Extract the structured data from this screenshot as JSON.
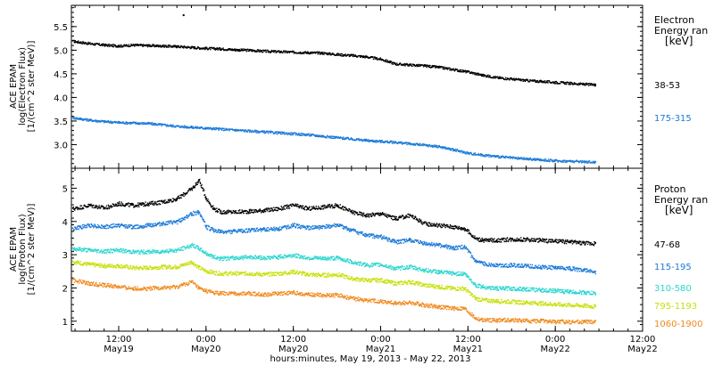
{
  "xlabel": "hours:minutes, May 19, 2013 - May 22, 2013",
  "x_ticks": [
    {
      "t": 12,
      "time": "12:00",
      "date": "May19"
    },
    {
      "t": 24,
      "time": "0:00",
      "date": "May20"
    },
    {
      "t": 36,
      "time": "12:00",
      "date": "May20"
    },
    {
      "t": 48,
      "time": "0:00",
      "date": "May21"
    },
    {
      "t": 60,
      "time": "12:00",
      "date": "May21"
    },
    {
      "t": 72,
      "time": "0:00",
      "date": "May22"
    },
    {
      "t": 84,
      "time": "12:00",
      "date": "May22"
    }
  ],
  "chart_data": [
    {
      "type": "scatter",
      "panel": "electron",
      "ylabel": [
        "ACE EPAM",
        "log(Electron Flux)",
        "[1/(cm^2 ster MeV)]"
      ],
      "legend_title": [
        "Electron",
        "Energy ran",
        "[keV]"
      ],
      "xlim": [
        5.5,
        84
      ],
      "ylim": [
        2.5,
        5.95
      ],
      "y_ticks": [
        "3.0",
        "3.5",
        "4.0",
        "4.5",
        "5.0",
        "5.5"
      ],
      "y_tick_values": [
        3.0,
        3.5,
        4.0,
        4.5,
        5.0,
        5.5
      ],
      "series": [
        {
          "name": "38-53",
          "color": "#000000",
          "x": [
            5.7,
            8,
            10,
            12,
            14,
            16,
            18,
            20,
            22,
            24,
            26,
            28,
            30,
            32,
            34,
            36,
            38,
            40,
            42,
            44,
            46,
            48,
            50,
            52,
            54,
            56,
            58,
            60,
            62,
            64,
            66,
            68,
            70,
            72,
            74,
            76,
            77.5
          ],
          "y": [
            5.2,
            5.15,
            5.12,
            5.1,
            5.12,
            5.11,
            5.1,
            5.09,
            5.07,
            5.05,
            5.04,
            5.02,
            5.01,
            4.99,
            4.98,
            4.97,
            4.96,
            4.95,
            4.92,
            4.9,
            4.87,
            4.82,
            4.72,
            4.7,
            4.68,
            4.65,
            4.6,
            4.55,
            4.48,
            4.43,
            4.4,
            4.37,
            4.35,
            4.33,
            4.31,
            4.29,
            4.28
          ]
        },
        {
          "name": "175-315",
          "color": "#1b7ad8",
          "x": [
            5.7,
            8,
            10,
            12,
            14,
            16,
            18,
            20,
            22,
            24,
            26,
            28,
            30,
            32,
            34,
            36,
            38,
            40,
            42,
            44,
            46,
            48,
            50,
            52,
            54,
            56,
            58,
            60,
            62,
            64,
            66,
            68,
            70,
            72,
            74,
            76,
            77.5
          ],
          "y": [
            3.58,
            3.53,
            3.5,
            3.48,
            3.47,
            3.46,
            3.43,
            3.4,
            3.38,
            3.36,
            3.34,
            3.32,
            3.3,
            3.28,
            3.26,
            3.24,
            3.22,
            3.19,
            3.16,
            3.13,
            3.1,
            3.08,
            3.06,
            3.03,
            3.0,
            2.97,
            2.9,
            2.83,
            2.79,
            2.76,
            2.73,
            2.71,
            2.69,
            2.67,
            2.66,
            2.65,
            2.64
          ]
        }
      ],
      "annotations": [
        {
          "x": 20.8,
          "y": 5.76,
          "note": "isolated point"
        }
      ]
    },
    {
      "type": "scatter",
      "panel": "proton",
      "ylabel": [
        "ACE EPAM",
        "log(Proton Flux)",
        "[1/(cm^2 ster MeV)]"
      ],
      "legend_title": [
        "Proton",
        "Energy ran",
        "[keV]"
      ],
      "xlim": [
        5.5,
        84
      ],
      "ylim": [
        0.7,
        5.6
      ],
      "y_ticks": [
        "1",
        "2",
        "3",
        "4",
        "5"
      ],
      "y_tick_values": [
        1,
        2,
        3,
        4,
        5
      ],
      "series": [
        {
          "name": "47-68",
          "color": "#000000",
          "x": [
            5.7,
            8,
            10,
            12,
            14,
            16,
            18,
            20,
            22,
            23,
            24,
            25,
            26,
            28,
            30,
            32,
            34,
            36,
            38,
            40,
            42,
            44,
            46,
            48,
            50,
            52,
            54,
            56,
            58,
            59.5,
            61,
            62,
            64,
            66,
            68,
            70,
            72,
            74,
            76,
            77.5
          ],
          "y": [
            4.4,
            4.5,
            4.42,
            4.55,
            4.5,
            4.55,
            4.6,
            4.7,
            5.0,
            5.25,
            4.7,
            4.4,
            4.3,
            4.3,
            4.32,
            4.35,
            4.4,
            4.5,
            4.4,
            4.45,
            4.5,
            4.3,
            4.2,
            4.25,
            4.1,
            4.2,
            3.95,
            3.9,
            3.85,
            3.8,
            3.5,
            3.45,
            3.45,
            3.48,
            3.47,
            3.45,
            3.42,
            3.4,
            3.37,
            3.35
          ]
        },
        {
          "name": "115-195",
          "color": "#1b7ad8",
          "x": [
            5.7,
            8,
            10,
            12,
            14,
            16,
            18,
            20,
            22,
            23,
            24,
            25,
            26,
            28,
            30,
            32,
            34,
            36,
            38,
            40,
            42,
            44,
            46,
            48,
            50,
            52,
            54,
            56,
            58,
            59.5,
            61,
            62,
            64,
            66,
            68,
            70,
            72,
            74,
            76,
            77.5
          ],
          "y": [
            3.8,
            3.9,
            3.85,
            3.9,
            3.85,
            3.9,
            3.95,
            4.0,
            4.25,
            4.3,
            3.85,
            3.75,
            3.7,
            3.72,
            3.75,
            3.78,
            3.8,
            3.9,
            3.82,
            3.85,
            3.9,
            3.75,
            3.6,
            3.55,
            3.4,
            3.45,
            3.35,
            3.3,
            3.22,
            3.25,
            2.8,
            2.75,
            2.7,
            2.7,
            2.68,
            2.65,
            2.62,
            2.6,
            2.55,
            2.5
          ]
        },
        {
          "name": "310-580",
          "color": "#2ad6cf",
          "x": [
            5.7,
            8,
            10,
            12,
            14,
            16,
            18,
            20,
            22,
            23,
            24,
            25,
            26,
            28,
            30,
            32,
            34,
            36,
            38,
            40,
            42,
            44,
            46,
            48,
            50,
            52,
            54,
            56,
            58,
            59.5,
            61,
            62,
            64,
            66,
            68,
            70,
            72,
            74,
            76,
            77.5
          ],
          "y": [
            3.2,
            3.15,
            3.12,
            3.15,
            3.1,
            3.1,
            3.12,
            3.15,
            3.3,
            3.2,
            3.05,
            2.95,
            2.9,
            2.92,
            2.95,
            2.92,
            2.95,
            3.0,
            2.92,
            2.9,
            2.92,
            2.8,
            2.7,
            2.72,
            2.6,
            2.65,
            2.55,
            2.5,
            2.45,
            2.45,
            2.1,
            2.05,
            2.0,
            2.0,
            1.98,
            1.95,
            1.93,
            1.9,
            1.88,
            1.85
          ]
        },
        {
          "name": "795-1193",
          "color": "#c6e008",
          "x": [
            5.7,
            8,
            10,
            12,
            14,
            16,
            18,
            20,
            22,
            23,
            24,
            25,
            26,
            28,
            30,
            32,
            34,
            36,
            38,
            40,
            42,
            44,
            46,
            48,
            50,
            52,
            54,
            56,
            58,
            59.5,
            61,
            62,
            64,
            66,
            68,
            70,
            72,
            74,
            76,
            77.5
          ],
          "y": [
            2.8,
            2.72,
            2.68,
            2.68,
            2.62,
            2.62,
            2.65,
            2.65,
            2.8,
            2.62,
            2.52,
            2.48,
            2.45,
            2.45,
            2.45,
            2.42,
            2.45,
            2.5,
            2.42,
            2.4,
            2.42,
            2.3,
            2.25,
            2.25,
            2.15,
            2.2,
            2.1,
            2.05,
            2.0,
            2.0,
            1.7,
            1.65,
            1.62,
            1.6,
            1.58,
            1.55,
            1.52,
            1.5,
            1.48,
            1.45
          ]
        },
        {
          "name": "1060-1900",
          "color": "#f08a1e",
          "x": [
            5.7,
            8,
            10,
            12,
            14,
            16,
            18,
            20,
            22,
            23,
            24,
            25,
            26,
            28,
            30,
            32,
            34,
            36,
            38,
            40,
            42,
            44,
            46,
            48,
            50,
            52,
            54,
            56,
            58,
            59.5,
            61,
            62,
            64,
            66,
            68,
            70,
            72,
            74,
            76,
            77.5
          ],
          "y": [
            2.25,
            2.15,
            2.1,
            2.05,
            2.0,
            2.0,
            2.02,
            2.05,
            2.2,
            2.0,
            1.92,
            1.88,
            1.85,
            1.85,
            1.85,
            1.82,
            1.85,
            1.88,
            1.82,
            1.8,
            1.8,
            1.7,
            1.65,
            1.62,
            1.55,
            1.58,
            1.5,
            1.45,
            1.4,
            1.4,
            1.1,
            1.05,
            1.05,
            1.05,
            1.03,
            1.02,
            1.0,
            1.0,
            1.0,
            1.0
          ]
        }
      ]
    }
  ]
}
